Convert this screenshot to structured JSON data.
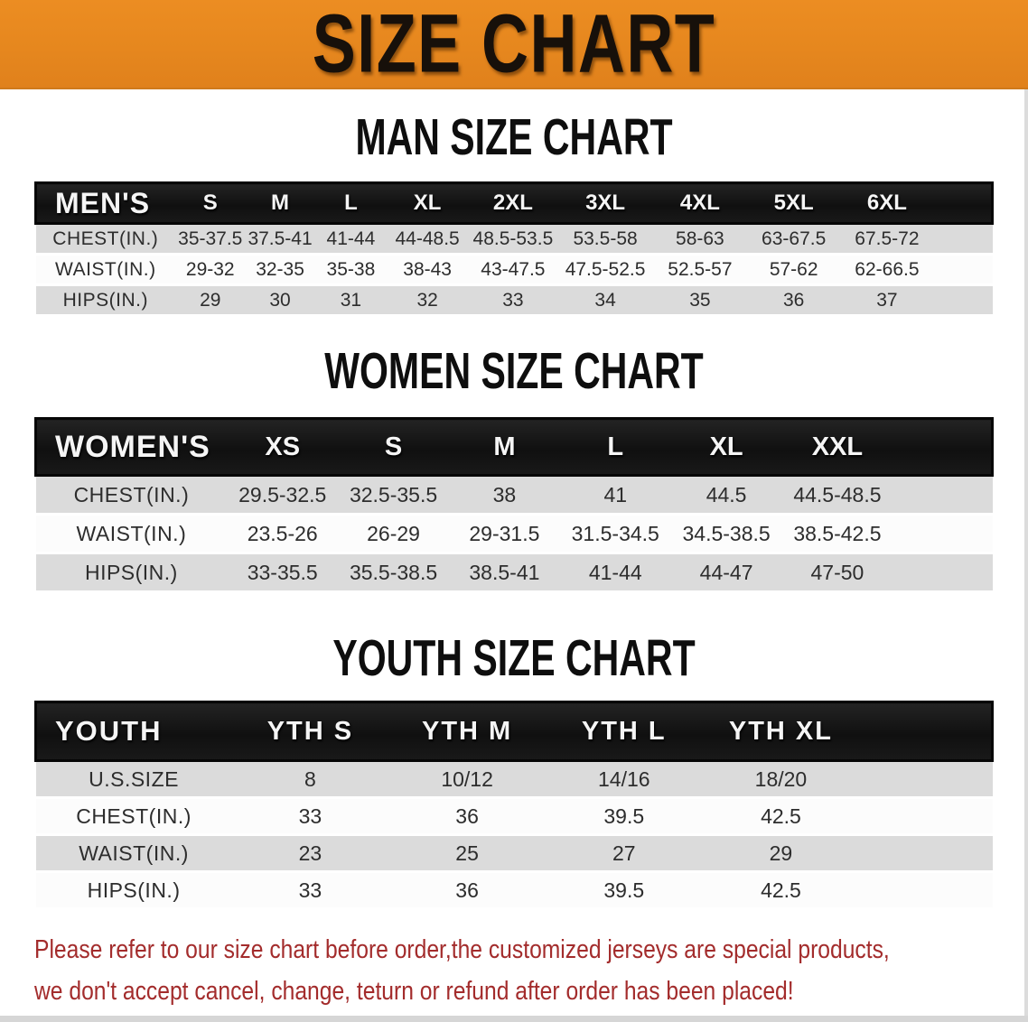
{
  "banner": {
    "title": "SIZE CHART",
    "bg_color": "#E6871E",
    "text_color": "#17100A"
  },
  "sections": [
    {
      "id": "men",
      "heading": "MAN SIZE CHART",
      "group_label": "MEN'S",
      "columns": [
        "S",
        "M",
        "L",
        "XL",
        "2XL",
        "3XL",
        "4XL",
        "5XL",
        "6XL"
      ],
      "rows": [
        {
          "label": "CHEST(IN.)",
          "values": [
            "35-37.5",
            "37.5-41",
            "41-44",
            "44-48.5",
            "48.5-53.5",
            "53.5-58",
            "58-63",
            "63-67.5",
            "67.5-72"
          ]
        },
        {
          "label": "WAIST(IN.)",
          "values": [
            "29-32",
            "32-35",
            "35-38",
            "38-43",
            "43-47.5",
            "47.5-52.5",
            "52.5-57",
            "57-62",
            "62-66.5"
          ]
        },
        {
          "label": "HIPS(IN.)",
          "values": [
            "29",
            "30",
            "31",
            "32",
            "33",
            "34",
            "35",
            "36",
            "37"
          ]
        }
      ]
    },
    {
      "id": "women",
      "heading": "WOMEN SIZE CHART",
      "group_label": "WOMEN'S",
      "columns": [
        "XS",
        "S",
        "M",
        "L",
        "XL",
        "XXL"
      ],
      "rows": [
        {
          "label": "CHEST(IN.)",
          "values": [
            "29.5-32.5",
            "32.5-35.5",
            "38",
            "41",
            "44.5",
            "44.5-48.5"
          ]
        },
        {
          "label": "WAIST(IN.)",
          "values": [
            "23.5-26",
            "26-29",
            "29-31.5",
            "31.5-34.5",
            "34.5-38.5",
            "38.5-42.5"
          ]
        },
        {
          "label": "HIPS(IN.)",
          "values": [
            "33-35.5",
            "35.5-38.5",
            "38.5-41",
            "41-44",
            "44-47",
            "47-50"
          ]
        }
      ]
    },
    {
      "id": "youth",
      "heading": "YOUTH SIZE CHART",
      "group_label": "YOUTH",
      "columns": [
        "YTH S",
        "YTH M",
        "YTH L",
        "YTH XL"
      ],
      "rows": [
        {
          "label": "U.S.SIZE",
          "values": [
            "8",
            "10/12",
            "14/16",
            "18/20"
          ]
        },
        {
          "label": "CHEST(IN.)",
          "values": [
            "33",
            "36",
            "39.5",
            "42.5"
          ]
        },
        {
          "label": "WAIST(IN.)",
          "values": [
            "23",
            "25",
            "27",
            "29"
          ]
        },
        {
          "label": "HIPS(IN.)",
          "values": [
            "33",
            "36",
            "39.5",
            "42.5"
          ]
        }
      ]
    }
  ],
  "table_style": {
    "header_band_color": "#141414",
    "shaded_row_color": "#DBDBDB",
    "plain_row_color": "#FCFCFC"
  },
  "footer_note": {
    "line1": "Please refer to our size chart before order,the customized jerseys are special products,",
    "line2": "we don't accept cancel, change, teturn or refund after order has been placed!",
    "color": "#A32C2C"
  }
}
